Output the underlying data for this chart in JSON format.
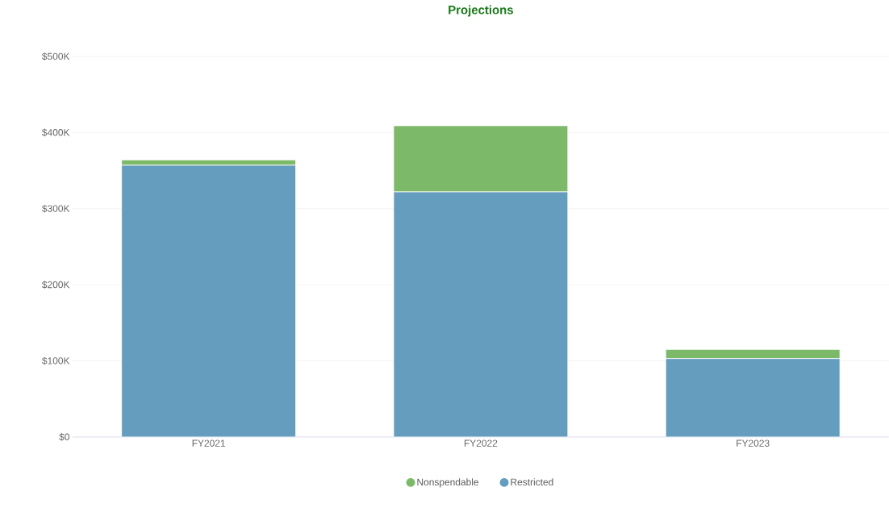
{
  "chart_data": {
    "type": "bar",
    "title": "Projections",
    "stacked": true,
    "categories": [
      "FY2021",
      "FY2022",
      "FY2023"
    ],
    "series": [
      {
        "name": "Restricted",
        "color": "#659dbf",
        "values": [
          357000,
          322000,
          103000
        ]
      },
      {
        "name": "Nonspendable",
        "color": "#7cba6a",
        "values": [
          7000,
          87000,
          12000
        ]
      }
    ],
    "ylim": [
      0,
      500000
    ],
    "yticks": [
      {
        "value": 0,
        "label": "$0"
      },
      {
        "value": 100000,
        "label": "$100K"
      },
      {
        "value": 200000,
        "label": "$200K"
      },
      {
        "value": 300000,
        "label": "$300K"
      },
      {
        "value": 400000,
        "label": "$400K"
      },
      {
        "value": 500000,
        "label": "$500K"
      }
    ],
    "grid": "y",
    "legend": "bottom"
  }
}
